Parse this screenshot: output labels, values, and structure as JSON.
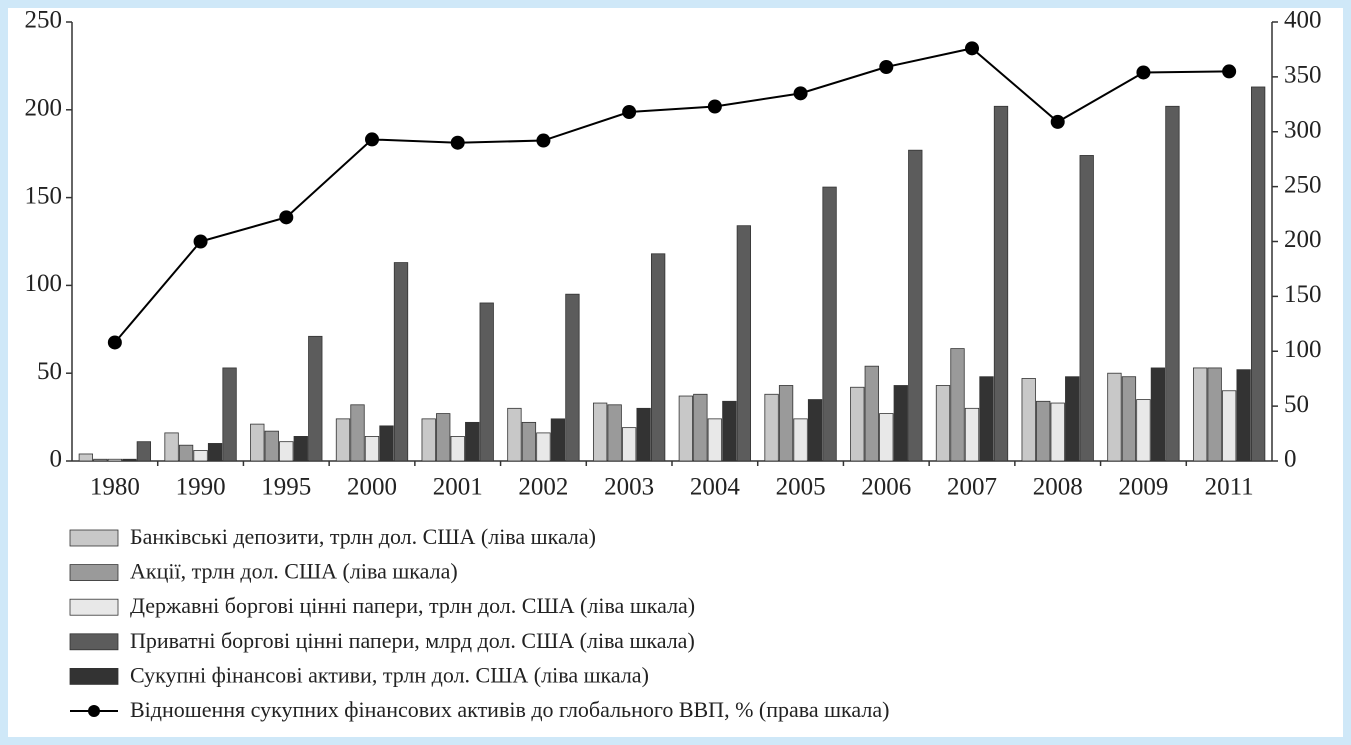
{
  "chart_data": {
    "type": "bar",
    "categories": [
      "1980",
      "1990",
      "1995",
      "2000",
      "2001",
      "2002",
      "2003",
      "2004",
      "2005",
      "2006",
      "2007",
      "2008",
      "2009",
      "2011"
    ],
    "ylim": [
      0,
      250
    ],
    "yticks": [
      0,
      50,
      100,
      150,
      200,
      250
    ],
    "y2lim": [
      0,
      400
    ],
    "y2ticks": [
      0,
      50,
      100,
      150,
      200,
      250,
      300,
      350,
      400
    ],
    "series": [
      {
        "name": "Банківські депозити, трлн дол. США (ліва шкала)",
        "color": "#c8c8c8",
        "values": [
          4,
          16,
          21,
          24,
          24,
          30,
          33,
          37,
          38,
          42,
          43,
          47,
          50,
          53
        ]
      },
      {
        "name": "Акції, трлн дол. США (ліва шкала)",
        "color": "#9a9a9a",
        "values": [
          1,
          9,
          17,
          32,
          27,
          22,
          32,
          38,
          43,
          54,
          64,
          34,
          48,
          53
        ]
      },
      {
        "name": "Державні боргові цінні папери, трлн дол. США (ліва шкала)",
        "color": "#e8e8e8",
        "values": [
          1,
          6,
          11,
          14,
          14,
          16,
          19,
          24,
          24,
          27,
          30,
          33,
          35,
          40
        ]
      },
      {
        "name": "Приватні боргові цінні папери, млрд дол. США (ліва шкала)",
        "color": "#5c5c5c",
        "values": [
          11,
          53,
          71,
          113,
          90,
          95,
          118,
          134,
          156,
          177,
          202,
          174,
          202,
          213
        ]
      },
      {
        "name": "Сукупні фінансові активи, трлн дол. США (ліва шкала)",
        "color": "#333333",
        "values": [
          1,
          10,
          14,
          20,
          22,
          24,
          30,
          34,
          35,
          43,
          48,
          48,
          53,
          52
        ]
      },
      {
        "name": "Відношення сукупних фінансових активів до глобального ВВП, % (права шкала)",
        "type": "line",
        "axis": "y2",
        "color": "#000000",
        "values": [
          108,
          200,
          222,
          293,
          290,
          292,
          318,
          323,
          335,
          359,
          376,
          309,
          354,
          355
        ]
      }
    ]
  }
}
